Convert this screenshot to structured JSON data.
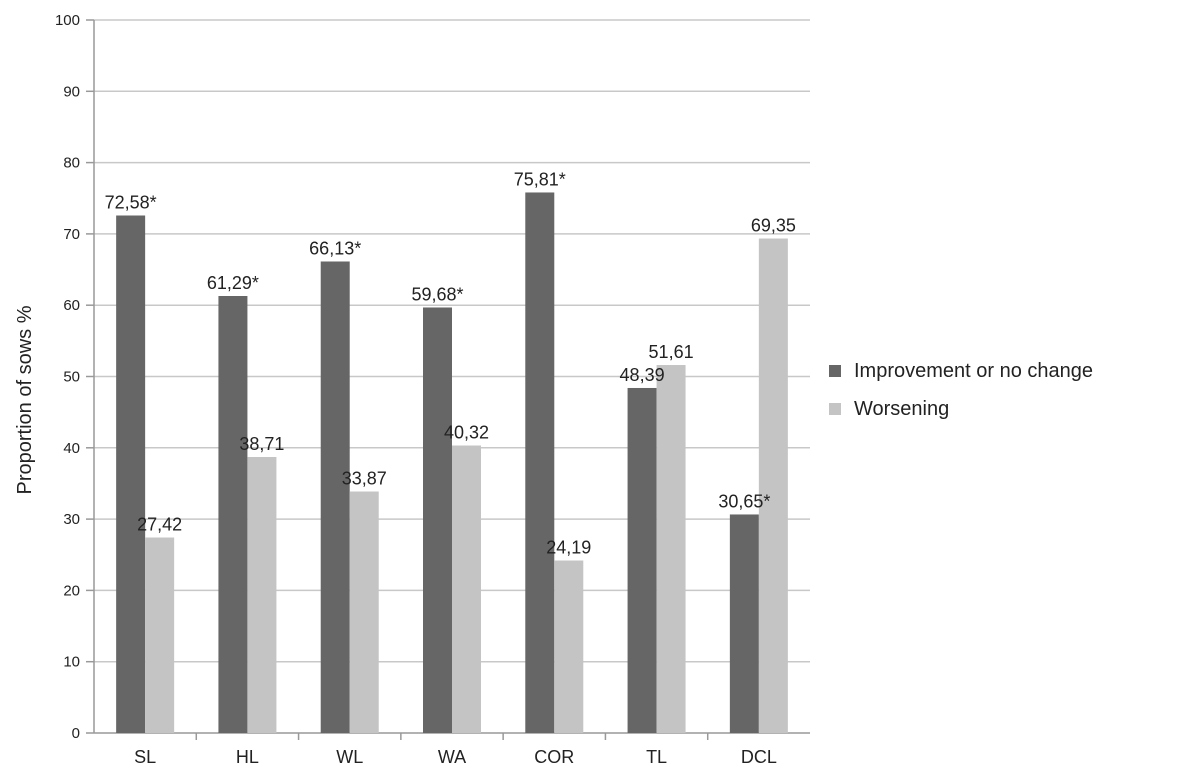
{
  "chart_data": {
    "type": "bar",
    "ylabel": "Proportion of sows %",
    "ylim": [
      0,
      100
    ],
    "yticks": [
      0,
      10,
      20,
      30,
      40,
      50,
      60,
      70,
      80,
      90,
      100
    ],
    "grid": true,
    "legend_placement": "right",
    "categories": [
      "SL",
      "HL",
      "WL",
      "WA",
      "COR",
      "TL",
      "DCL"
    ],
    "series": [
      {
        "name": "Improvement or no change",
        "color": "#666666",
        "values": [
          72.58,
          61.29,
          66.13,
          59.68,
          75.81,
          48.39,
          30.65
        ],
        "labels": [
          "72,58*",
          "61,29*",
          "66,13*",
          "59,68*",
          "75,81*",
          "48,39",
          "30,65*"
        ]
      },
      {
        "name": "Worsening",
        "color": "#c4c4c4",
        "values": [
          27.42,
          38.71,
          33.87,
          40.32,
          24.19,
          51.61,
          69.35
        ],
        "labels": [
          "27,42",
          "38,71",
          "33,87",
          "40,32",
          "24,19",
          "51,61",
          "69,35"
        ]
      }
    ]
  }
}
